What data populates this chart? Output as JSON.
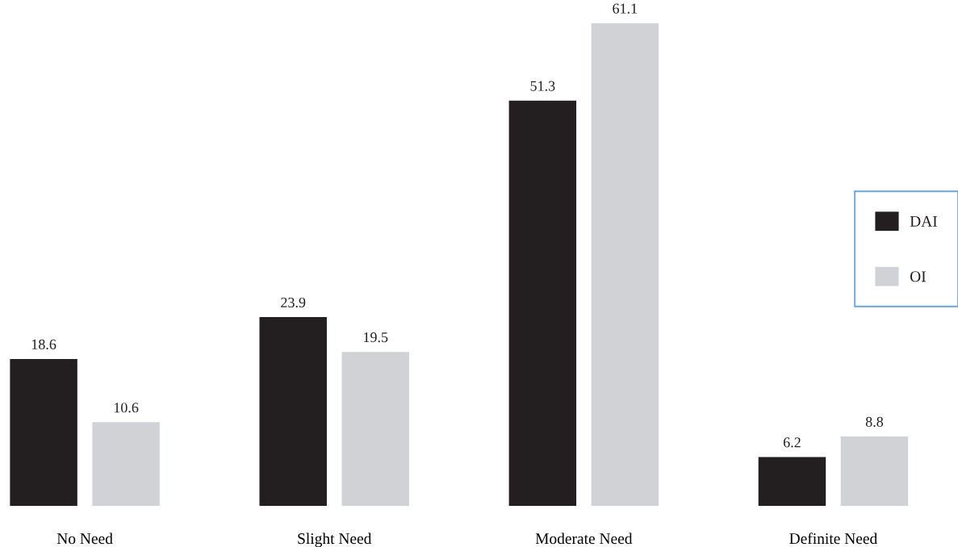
{
  "chart_data": {
    "type": "bar",
    "categories": [
      "No Need",
      "Slight Need",
      "Moderate Need",
      "Definite Need"
    ],
    "series": [
      {
        "name": "DAI",
        "color": "#231f20",
        "values": [
          18.6,
          23.9,
          51.3,
          6.2
        ]
      },
      {
        "name": "OI",
        "color": "#d1d2d6",
        "values": [
          10.6,
          19.5,
          61.1,
          8.8
        ]
      }
    ],
    "data_labels": true,
    "legend": "right",
    "grid": false
  }
}
